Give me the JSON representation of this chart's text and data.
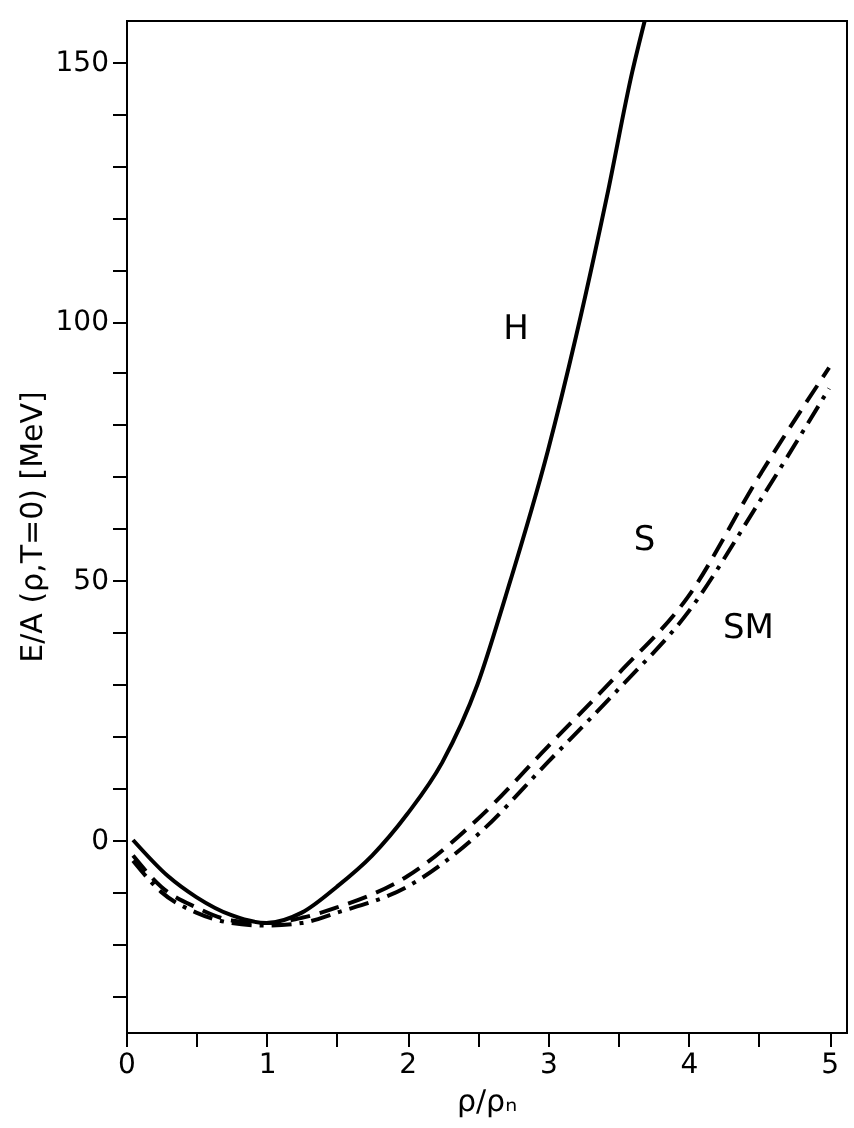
{
  "chart_data": {
    "type": "line",
    "xlabel": "ρ/ρₙ",
    "ylabel": "E/A (ρ,T=0) [MeV]",
    "xlim": [
      0,
      5.12
    ],
    "ylim": [
      -37,
      158
    ],
    "xticks": [
      0,
      {
        "value": 0.5,
        "label": null
      },
      1,
      {
        "value": 1.5,
        "label": null
      },
      2,
      {
        "value": 2.5,
        "label": null
      },
      3,
      {
        "value": 3.5,
        "label": null
      },
      4,
      {
        "value": 4.5,
        "label": null
      },
      5
    ],
    "yticks": [
      {
        "value": -30,
        "label": null
      },
      {
        "value": -20,
        "label": null
      },
      {
        "value": -10,
        "label": null
      },
      0,
      {
        "value": 10,
        "label": null
      },
      {
        "value": 20,
        "label": null
      },
      {
        "value": 30,
        "label": null
      },
      {
        "value": 40,
        "label": null
      },
      50,
      {
        "value": 60,
        "label": null
      },
      {
        "value": 70,
        "label": null
      },
      {
        "value": 80,
        "label": null
      },
      {
        "value": 90,
        "label": null
      },
      100,
      {
        "value": 110,
        "label": null
      },
      {
        "value": 120,
        "label": null
      },
      {
        "value": 130,
        "label": null
      },
      {
        "value": 140,
        "label": null
      },
      150
    ],
    "grid": false,
    "legend": false,
    "marker": "none",
    "series": [
      {
        "name": "H",
        "color": "#000000",
        "line_style": "solid",
        "x": [
          0.05,
          0.3,
          0.5,
          0.75,
          1.0,
          1.25,
          1.5,
          1.75,
          2.0,
          2.25,
          2.5,
          2.7,
          3.0,
          3.2,
          3.42,
          3.6,
          3.69
        ],
        "values": [
          0,
          -7,
          -11,
          -14.5,
          -16,
          -14,
          -9,
          -3,
          5,
          15,
          30,
          47,
          75,
          97,
          124,
          148,
          158
        ]
      },
      {
        "name": "S",
        "color": "#000000",
        "line_style": "dashed",
        "x": [
          0.05,
          0.25,
          0.5,
          0.75,
          1.0,
          1.25,
          1.5,
          2.0,
          2.5,
          3.0,
          3.5,
          4.0,
          4.5,
          5.0
        ],
        "values": [
          -3,
          -9,
          -13,
          -15.5,
          -16,
          -15,
          -13,
          -7,
          4,
          18,
          32,
          47,
          70,
          91
        ]
      },
      {
        "name": "SM",
        "color": "#000000",
        "line_style": "dotted",
        "x": [
          0.05,
          0.25,
          0.5,
          0.75,
          1.0,
          1.25,
          1.5,
          2.0,
          2.5,
          3.0,
          3.5,
          4.0,
          4.5,
          5.0
        ],
        "values": [
          -4,
          -10,
          -14,
          -16,
          -16.5,
          -16,
          -14,
          -9,
          1,
          15,
          29,
          44,
          65,
          87
        ]
      }
    ]
  }
}
